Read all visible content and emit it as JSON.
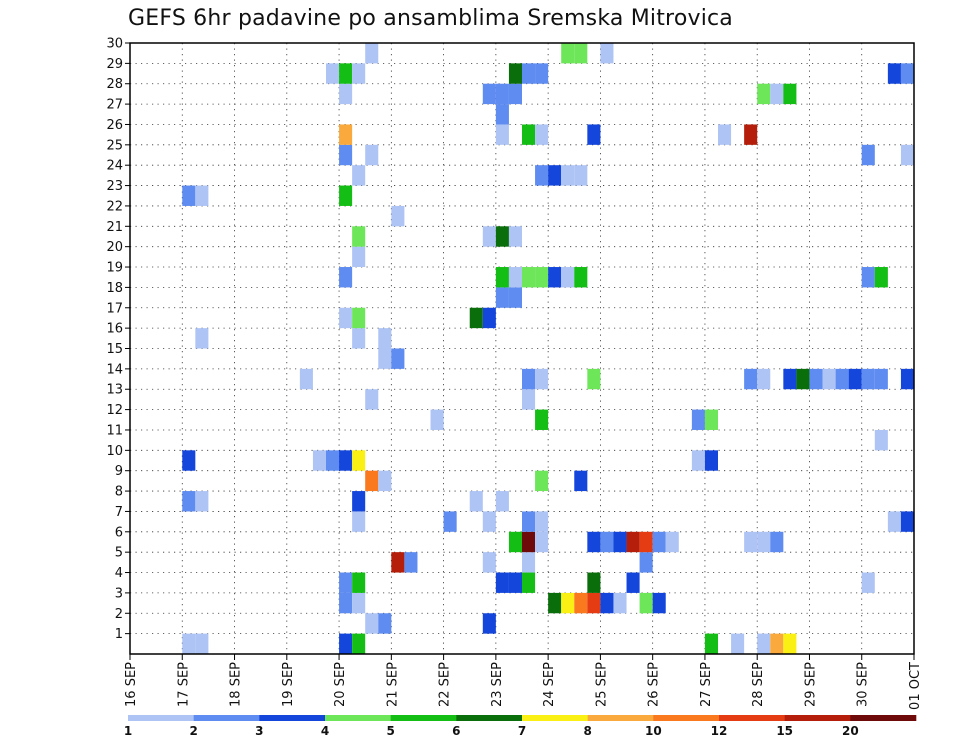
{
  "title": "GEFS 6hr padavine po ansamblima Sremska Mitrovica",
  "chart_data": {
    "type": "heatmap",
    "title": "GEFS 6hr padavine po ansamblima Sremska Mitrovica",
    "x_axis": {
      "tick_labels": [
        "16 SEP",
        "17 SEP",
        "18 SEP",
        "19 SEP",
        "20 SEP",
        "21 SEP",
        "22 SEP",
        "23 SEP",
        "24 SEP",
        "25 SEP",
        "26 SEP",
        "27 SEP",
        "28 SEP",
        "29 SEP",
        "30 SEP",
        "01 OCT"
      ],
      "step_hours": 6
    },
    "y_axis": {
      "tick_labels": [
        "1",
        "2",
        "3",
        "4",
        "5",
        "6",
        "7",
        "8",
        "9",
        "10",
        "11",
        "12",
        "13",
        "14",
        "15",
        "16",
        "17",
        "18",
        "19",
        "20",
        "21",
        "22",
        "23",
        "24",
        "25",
        "26",
        "27",
        "28",
        "29",
        "30"
      ],
      "range": [
        0,
        30
      ]
    },
    "grid": true,
    "colorbar": {
      "bounds": [
        "1",
        "2",
        "3",
        "4",
        "5",
        "6",
        "7",
        "8",
        "10",
        "12",
        "15",
        "20"
      ],
      "colors": [
        "#aec4f5",
        "#5e8cf0",
        "#1446dc",
        "#6ee65a",
        "#14be14",
        "#0a6e0a",
        "#faf014",
        "#faaa3c",
        "#fa781e",
        "#e63c14",
        "#b41e0a",
        "#6e0a0a"
      ]
    },
    "cells": [
      [
        "17 SEP 00Z",
        0,
        1
      ],
      [
        "17 SEP 06Z",
        0,
        1
      ],
      [
        "20 SEP 00Z",
        0,
        3
      ],
      [
        "20 SEP 06Z",
        0,
        5
      ],
      [
        "27 SEP 00Z",
        0,
        5
      ],
      [
        "27 SEP 12Z",
        0,
        1
      ],
      [
        "28 SEP 00Z",
        0,
        1
      ],
      [
        "28 SEP 06Z",
        0,
        8
      ],
      [
        "28 SEP 12Z",
        0,
        7
      ],
      [
        "20 SEP 12Z",
        1,
        1
      ],
      [
        "20 SEP 18Z",
        1,
        2
      ],
      [
        "22 SEP 18Z",
        1,
        3
      ],
      [
        "20 SEP 00Z",
        2,
        2
      ],
      [
        "20 SEP 06Z",
        2,
        1
      ],
      [
        "24 SEP 00Z",
        2,
        6
      ],
      [
        "24 SEP 06Z",
        2,
        7
      ],
      [
        "24 SEP 12Z",
        2,
        10
      ],
      [
        "24 SEP 18Z",
        2,
        12
      ],
      [
        "25 SEP 00Z",
        2,
        3
      ],
      [
        "25 SEP 06Z",
        2,
        1
      ],
      [
        "25 SEP 18Z",
        2,
        4
      ],
      [
        "26 SEP 00Z",
        2,
        3
      ],
      [
        "20 SEP 00Z",
        3,
        2
      ],
      [
        "20 SEP 06Z",
        3,
        5
      ],
      [
        "23 SEP 00Z",
        3,
        3
      ],
      [
        "23 SEP 06Z",
        3,
        3
      ],
      [
        "23 SEP 12Z",
        3,
        5
      ],
      [
        "24 SEP 18Z",
        3,
        6
      ],
      [
        "25 SEP 12Z",
        3,
        3
      ],
      [
        "30 SEP 00Z",
        3,
        1
      ],
      [
        "21 SEP 00Z",
        4,
        15
      ],
      [
        "21 SEP 06Z",
        4,
        2
      ],
      [
        "22 SEP 18Z",
        4,
        1
      ],
      [
        "23 SEP 12Z",
        4,
        1
      ],
      [
        "25 SEP 18Z",
        4,
        2
      ],
      [
        "23 SEP 06Z",
        5,
        5
      ],
      [
        "23 SEP 12Z",
        5,
        20
      ],
      [
        "23 SEP 18Z",
        5,
        1
      ],
      [
        "24 SEP 18Z",
        5,
        3
      ],
      [
        "25 SEP 00Z",
        5,
        2
      ],
      [
        "25 SEP 06Z",
        5,
        3
      ],
      [
        "25 SEP 12Z",
        5,
        15
      ],
      [
        "25 SEP 18Z",
        5,
        12
      ],
      [
        "26 SEP 00Z",
        5,
        2
      ],
      [
        "26 SEP 06Z",
        5,
        1
      ],
      [
        "27 SEP 18Z",
        5,
        1
      ],
      [
        "28 SEP 00Z",
        5,
        1
      ],
      [
        "28 SEP 06Z",
        5,
        2
      ],
      [
        "20 SEP 06Z",
        6,
        1
      ],
      [
        "22 SEP 00Z",
        6,
        2
      ],
      [
        "22 SEP 18Z",
        6,
        1
      ],
      [
        "23 SEP 12Z",
        6,
        2
      ],
      [
        "23 SEP 18Z",
        6,
        1
      ],
      [
        "30 SEP 12Z",
        6,
        1
      ],
      [
        "30 SEP 18Z",
        6,
        3
      ],
      [
        "01 OCT 00Z",
        6,
        5
      ],
      [
        "17 SEP 00Z",
        7,
        2
      ],
      [
        "17 SEP 06Z",
        7,
        1
      ],
      [
        "20 SEP 06Z",
        7,
        3
      ],
      [
        "22 SEP 12Z",
        7,
        1
      ],
      [
        "23 SEP 00Z",
        7,
        1
      ],
      [
        "20 SEP 12Z",
        8,
        10
      ],
      [
        "20 SEP 18Z",
        8,
        1
      ],
      [
        "23 SEP 18Z",
        8,
        4
      ],
      [
        "24 SEP 12Z",
        8,
        3
      ],
      [
        "17 SEP 00Z",
        9,
        3
      ],
      [
        "19 SEP 12Z",
        9,
        1
      ],
      [
        "19 SEP 18Z",
        9,
        2
      ],
      [
        "20 SEP 00Z",
        9,
        3
      ],
      [
        "20 SEP 06Z",
        9,
        7
      ],
      [
        "26 SEP 18Z",
        9,
        1
      ],
      [
        "27 SEP 00Z",
        9,
        3
      ],
      [
        "30 SEP 06Z",
        10,
        1
      ],
      [
        "21 SEP 18Z",
        11,
        1
      ],
      [
        "23 SEP 18Z",
        11,
        5
      ],
      [
        "26 SEP 18Z",
        11,
        2
      ],
      [
        "27 SEP 00Z",
        11,
        4
      ],
      [
        "20 SEP 12Z",
        12,
        1
      ],
      [
        "23 SEP 12Z",
        12,
        1
      ],
      [
        "19 SEP 06Z",
        13,
        1
      ],
      [
        "23 SEP 12Z",
        13,
        2
      ],
      [
        "23 SEP 18Z",
        13,
        1
      ],
      [
        "24 SEP 18Z",
        13,
        4
      ],
      [
        "27 SEP 18Z",
        13,
        2
      ],
      [
        "28 SEP 00Z",
        13,
        1
      ],
      [
        "28 SEP 12Z",
        13,
        3
      ],
      [
        "28 SEP 18Z",
        13,
        6
      ],
      [
        "29 SEP 00Z",
        13,
        2
      ],
      [
        "29 SEP 06Z",
        13,
        1
      ],
      [
        "29 SEP 12Z",
        13,
        2
      ],
      [
        "29 SEP 18Z",
        13,
        3
      ],
      [
        "30 SEP 00Z",
        13,
        2
      ],
      [
        "30 SEP 06Z",
        13,
        2
      ],
      [
        "30 SEP 18Z",
        13,
        3
      ],
      [
        "01 OCT 00Z",
        13,
        1
      ],
      [
        "20 SEP 18Z",
        14,
        1
      ],
      [
        "21 SEP 00Z",
        14,
        2
      ],
      [
        "17 SEP 06Z",
        15,
        1
      ],
      [
        "20 SEP 06Z",
        15,
        1
      ],
      [
        "20 SEP 18Z",
        15,
        1
      ],
      [
        "20 SEP 00Z",
        16,
        1
      ],
      [
        "20 SEP 06Z",
        16,
        4
      ],
      [
        "22 SEP 12Z",
        16,
        6
      ],
      [
        "22 SEP 18Z",
        16,
        3
      ],
      [
        "23 SEP 00Z",
        17,
        2
      ],
      [
        "23 SEP 06Z",
        17,
        2
      ],
      [
        "23 SEP 00Z",
        18,
        5
      ],
      [
        "23 SEP 06Z",
        18,
        1
      ],
      [
        "23 SEP 12Z",
        18,
        4
      ],
      [
        "23 SEP 18Z",
        18,
        4
      ],
      [
        "24 SEP 00Z",
        18,
        3
      ],
      [
        "24 SEP 06Z",
        18,
        1
      ],
      [
        "24 SEP 12Z",
        18,
        5
      ],
      [
        "20 SEP 00Z",
        18,
        2
      ],
      [
        "30 SEP 00Z",
        18,
        2
      ],
      [
        "30 SEP 06Z",
        18,
        5
      ],
      [
        "20 SEP 06Z",
        19,
        1
      ],
      [
        "20 SEP 06Z",
        20,
        4
      ],
      [
        "22 SEP 18Z",
        20,
        1
      ],
      [
        "23 SEP 00Z",
        20,
        6
      ],
      [
        "23 SEP 06Z",
        20,
        1
      ],
      [
        "21 SEP 00Z",
        21,
        1
      ],
      [
        "17 SEP 00Z",
        22,
        2
      ],
      [
        "17 SEP 06Z",
        22,
        1
      ],
      [
        "20 SEP 00Z",
        22,
        5
      ],
      [
        "20 SEP 06Z",
        23,
        1
      ],
      [
        "23 SEP 18Z",
        23,
        2
      ],
      [
        "24 SEP 00Z",
        23,
        3
      ],
      [
        "24 SEP 06Z",
        23,
        1
      ],
      [
        "24 SEP 12Z",
        23,
        1
      ],
      [
        "20 SEP 00Z",
        24,
        2
      ],
      [
        "20 SEP 12Z",
        24,
        1
      ],
      [
        "30 SEP 00Z",
        24,
        2
      ],
      [
        "30 SEP 18Z",
        24,
        1
      ],
      [
        "20 SEP 00Z",
        25,
        8
      ],
      [
        "23 SEP 00Z",
        25,
        1
      ],
      [
        "23 SEP 12Z",
        25,
        5
      ],
      [
        "23 SEP 18Z",
        25,
        1
      ],
      [
        "24 SEP 18Z",
        25,
        3
      ],
      [
        "27 SEP 06Z",
        25,
        1
      ],
      [
        "27 SEP 18Z",
        25,
        15
      ],
      [
        "23 SEP 00Z",
        26,
        2
      ],
      [
        "20 SEP 00Z",
        27,
        1
      ],
      [
        "22 SEP 18Z",
        27,
        2
      ],
      [
        "23 SEP 00Z",
        27,
        2
      ],
      [
        "23 SEP 06Z",
        27,
        2
      ],
      [
        "28 SEP 00Z",
        27,
        4
      ],
      [
        "28 SEP 06Z",
        27,
        1
      ],
      [
        "28 SEP 12Z",
        27,
        5
      ],
      [
        "19 SEP 18Z",
        28,
        1
      ],
      [
        "20 SEP 00Z",
        28,
        5
      ],
      [
        "20 SEP 06Z",
        28,
        1
      ],
      [
        "23 SEP 06Z",
        28,
        6
      ],
      [
        "23 SEP 12Z",
        28,
        2
      ],
      [
        "23 SEP 18Z",
        28,
        2
      ],
      [
        "30 SEP 12Z",
        28,
        3
      ],
      [
        "30 SEP 18Z",
        28,
        2
      ],
      [
        "20 SEP 12Z",
        29,
        1
      ],
      [
        "24 SEP 06Z",
        29,
        4
      ],
      [
        "24 SEP 12Z",
        29,
        4
      ],
      [
        "25 SEP 00Z",
        29,
        1
      ]
    ]
  }
}
